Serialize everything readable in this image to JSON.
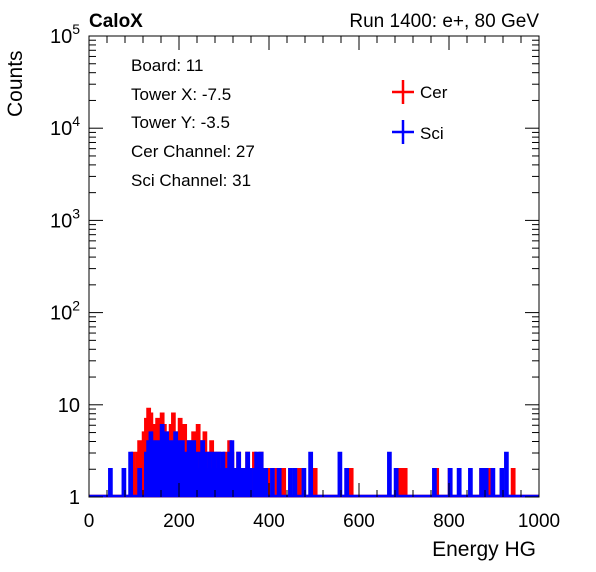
{
  "header": {
    "left_title": "CaloX",
    "right_title": "Run 1400: e+, 80 GeV"
  },
  "info_box": {
    "lines": [
      "Board: 11",
      "Tower X: -7.5",
      "Tower Y: -3.5",
      "Cer Channel: 27",
      "Sci Channel: 31"
    ]
  },
  "chart_data": {
    "type": "histogram",
    "xlabel": "Energy HG",
    "ylabel": "Counts",
    "xlim": [
      0,
      1000
    ],
    "ylim": [
      1,
      100000
    ],
    "y_scale": "log",
    "grid": false,
    "legend_position": "top-right",
    "x_ticks": [
      "0",
      "200",
      "400",
      "600",
      "800",
      "1000"
    ],
    "y_ticks": [
      {
        "value": 1,
        "base": "1",
        "exp": ""
      },
      {
        "value": 10,
        "base": "10",
        "exp": ""
      },
      {
        "value": 100,
        "base": "10",
        "exp": "2"
      },
      {
        "value": 1000,
        "base": "10",
        "exp": "3"
      },
      {
        "value": 10000,
        "base": "10",
        "exp": "4"
      },
      {
        "value": 100000,
        "base": "10",
        "exp": "5"
      }
    ],
    "bin_width": 5,
    "series": [
      {
        "name": "Cer",
        "color": "#ff0000",
        "bins": [
          [
            95,
            3
          ],
          [
            100,
            2
          ],
          [
            105,
            3
          ],
          [
            110,
            4
          ],
          [
            115,
            3
          ],
          [
            120,
            5
          ],
          [
            125,
            7
          ],
          [
            130,
            9
          ],
          [
            135,
            8
          ],
          [
            140,
            6
          ],
          [
            145,
            4
          ],
          [
            150,
            7
          ],
          [
            155,
            5
          ],
          [
            160,
            8
          ],
          [
            165,
            6
          ],
          [
            170,
            5
          ],
          [
            175,
            3
          ],
          [
            180,
            6
          ],
          [
            185,
            8
          ],
          [
            190,
            5
          ],
          [
            195,
            4
          ],
          [
            200,
            7
          ],
          [
            205,
            5
          ],
          [
            210,
            6
          ],
          [
            215,
            3
          ],
          [
            220,
            4
          ],
          [
            225,
            3
          ],
          [
            230,
            5
          ],
          [
            235,
            2
          ],
          [
            240,
            6
          ],
          [
            245,
            4
          ],
          [
            250,
            3
          ],
          [
            255,
            5
          ],
          [
            260,
            2
          ],
          [
            265,
            3
          ],
          [
            270,
            4
          ],
          [
            275,
            3
          ],
          [
            280,
            2
          ],
          [
            285,
            3
          ],
          [
            290,
            2
          ],
          [
            300,
            3
          ],
          [
            305,
            2
          ],
          [
            310,
            4
          ],
          [
            315,
            3
          ],
          [
            320,
            2
          ],
          [
            330,
            3
          ],
          [
            335,
            2
          ],
          [
            350,
            3
          ],
          [
            355,
            2
          ],
          [
            365,
            3
          ],
          [
            370,
            2
          ],
          [
            380,
            3
          ],
          [
            395,
            2
          ],
          [
            415,
            2
          ],
          [
            430,
            2
          ],
          [
            465,
            2
          ],
          [
            500,
            2
          ],
          [
            580,
            2
          ],
          [
            690,
            2
          ],
          [
            700,
            2
          ],
          [
            770,
            2
          ],
          [
            800,
            2
          ],
          [
            870,
            2
          ],
          [
            890,
            2
          ],
          [
            940,
            2
          ]
        ]
      },
      {
        "name": "Sci",
        "color": "#0000ff",
        "bins": [
          [
            45,
            2
          ],
          [
            75,
            2
          ],
          [
            90,
            3
          ],
          [
            110,
            2
          ],
          [
            125,
            3
          ],
          [
            130,
            4
          ],
          [
            135,
            5
          ],
          [
            140,
            4
          ],
          [
            145,
            3
          ],
          [
            150,
            4
          ],
          [
            155,
            3
          ],
          [
            160,
            6
          ],
          [
            165,
            4
          ],
          [
            170,
            5
          ],
          [
            175,
            3
          ],
          [
            180,
            4
          ],
          [
            185,
            3
          ],
          [
            190,
            5
          ],
          [
            195,
            4
          ],
          [
            200,
            3
          ],
          [
            205,
            4
          ],
          [
            210,
            3
          ],
          [
            215,
            2
          ],
          [
            220,
            4
          ],
          [
            225,
            3
          ],
          [
            230,
            4
          ],
          [
            235,
            3
          ],
          [
            240,
            2
          ],
          [
            245,
            3
          ],
          [
            250,
            4
          ],
          [
            255,
            3
          ],
          [
            260,
            2
          ],
          [
            265,
            3
          ],
          [
            270,
            2
          ],
          [
            275,
            3
          ],
          [
            280,
            2
          ],
          [
            285,
            3
          ],
          [
            290,
            2
          ],
          [
            295,
            3
          ],
          [
            300,
            2
          ],
          [
            310,
            3
          ],
          [
            315,
            4
          ],
          [
            320,
            2
          ],
          [
            330,
            3
          ],
          [
            340,
            2
          ],
          [
            350,
            3
          ],
          [
            355,
            2
          ],
          [
            365,
            2
          ],
          [
            370,
            3
          ],
          [
            375,
            2
          ],
          [
            380,
            3
          ],
          [
            390,
            2
          ],
          [
            405,
            2
          ],
          [
            420,
            2
          ],
          [
            445,
            2
          ],
          [
            455,
            2
          ],
          [
            475,
            2
          ],
          [
            490,
            3
          ],
          [
            555,
            3
          ],
          [
            570,
            2
          ],
          [
            665,
            3
          ],
          [
            680,
            2
          ],
          [
            765,
            2
          ],
          [
            800,
            2
          ],
          [
            820,
            2
          ],
          [
            845,
            2
          ],
          [
            870,
            2
          ],
          [
            880,
            2
          ],
          [
            895,
            2
          ],
          [
            915,
            2
          ],
          [
            925,
            3
          ]
        ]
      }
    ]
  }
}
